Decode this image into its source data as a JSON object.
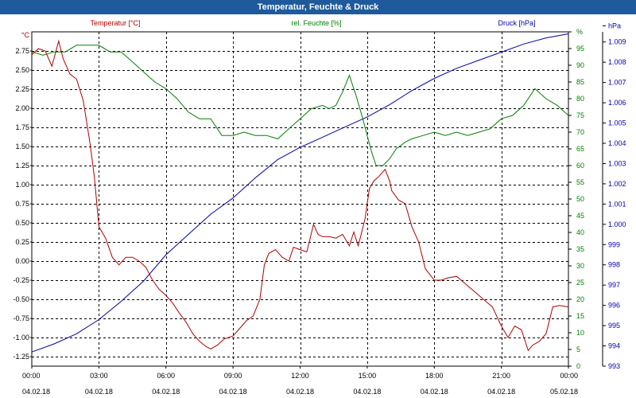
{
  "window": {
    "title": "Temperatur, Feuchte & Druck"
  },
  "chart_data": {
    "type": "line",
    "title": "Temperatur, Feuchte & Druck",
    "colors": {
      "temp": "#b00000",
      "hum": "#008000",
      "press": "#0000b0",
      "grid": "#000000"
    },
    "x_ticks": [
      {
        "time": "00:00",
        "date": "04.02.18",
        "h": 0
      },
      {
        "time": "03:00",
        "date": "04.02.18",
        "h": 3
      },
      {
        "time": "06:00",
        "date": "04.02.18",
        "h": 6
      },
      {
        "time": "09:00",
        "date": "04.02.18",
        "h": 9
      },
      {
        "time": "12:00",
        "date": "04.02.18",
        "h": 12
      },
      {
        "time": "15:00",
        "date": "04.02.18",
        "h": 15
      },
      {
        "time": "18:00",
        "date": "04.02.18",
        "h": 18
      },
      {
        "time": "21:00",
        "date": "04.02.18",
        "h": 21
      },
      {
        "time": "00:00",
        "date": "05.02.18",
        "h": 24
      }
    ],
    "xlim": [
      0,
      24
    ],
    "series": [
      {
        "name": "Temperatur [°C]",
        "key": "temp",
        "unit": "°C",
        "axis": "left",
        "ylim": [
          -1.375,
          3.0
        ],
        "ticks": [
          "2.75",
          "2.50",
          "2.25",
          "2.00",
          "1.75",
          "1.50",
          "1.25",
          "1.00",
          "0.75",
          "0.50",
          "0.25",
          "0.00",
          "-0.25",
          "-0.50",
          "-0.75",
          "-1.00",
          "-1.25"
        ],
        "tick_values": [
          2.75,
          2.5,
          2.25,
          2.0,
          1.75,
          1.5,
          1.25,
          1.0,
          0.75,
          0.5,
          0.25,
          0.0,
          -0.25,
          -0.5,
          -0.75,
          -1.0,
          -1.25
        ],
        "x": [
          0,
          0.3,
          0.6,
          0.9,
          1.2,
          1.4,
          1.7,
          2.0,
          2.3,
          2.6,
          2.8,
          3.0,
          3.3,
          3.6,
          3.9,
          4.2,
          4.5,
          4.8,
          5.1,
          5.4,
          5.7,
          6.0,
          6.3,
          6.6,
          6.9,
          7.2,
          7.5,
          7.8,
          8.0,
          8.3,
          8.6,
          9.0,
          9.3,
          9.6,
          9.9,
          10.2,
          10.4,
          10.6,
          10.9,
          11.2,
          11.5,
          11.7,
          12.0,
          12.3,
          12.6,
          12.8,
          13.0,
          13.3,
          13.6,
          13.9,
          14.2,
          14.4,
          14.6,
          14.9,
          15.1,
          15.3,
          15.5,
          15.8,
          16.0,
          16.1,
          16.4,
          16.7,
          17.0,
          17.3,
          17.6,
          18.0,
          18.3,
          18.6,
          19.0,
          19.4,
          19.8,
          20.2,
          20.6,
          21.0,
          21.3,
          21.6,
          21.9,
          22.2,
          22.4,
          22.7,
          23.0,
          23.3,
          23.6,
          24.0
        ],
        "values": [
          2.7,
          2.78,
          2.75,
          2.55,
          2.88,
          2.65,
          2.45,
          2.38,
          2.1,
          1.55,
          1.1,
          0.45,
          0.3,
          0.05,
          -0.05,
          0.05,
          0.05,
          0.0,
          -0.08,
          -0.25,
          -0.37,
          -0.45,
          -0.55,
          -0.68,
          -0.8,
          -0.95,
          -1.05,
          -1.12,
          -1.15,
          -1.1,
          -1.02,
          -0.98,
          -0.88,
          -0.78,
          -0.72,
          -0.5,
          -0.05,
          0.1,
          0.15,
          0.05,
          0.0,
          0.18,
          0.15,
          0.12,
          0.48,
          0.35,
          0.32,
          0.32,
          0.3,
          0.35,
          0.2,
          0.38,
          0.2,
          0.55,
          0.95,
          1.05,
          1.1,
          1.2,
          1.05,
          0.92,
          0.8,
          0.75,
          0.45,
          0.25,
          -0.1,
          -0.25,
          -0.25,
          -0.22,
          -0.2,
          -0.3,
          -0.4,
          -0.5,
          -0.6,
          -0.85,
          -1.0,
          -0.85,
          -0.9,
          -1.17,
          -1.1,
          -1.05,
          -0.95,
          -0.6,
          -0.58,
          -0.6
        ]
      },
      {
        "name": "rel. Feuchte [%]",
        "key": "hum",
        "unit": "%",
        "axis": "right-inner",
        "ylim": [
          0,
          100
        ],
        "ticks": [
          "0",
          "5",
          "10",
          "15",
          "20",
          "25",
          "30",
          "35",
          "40",
          "45",
          "50",
          "55",
          "60",
          "65",
          "70",
          "75",
          "80",
          "85",
          "90",
          "95",
          "%"
        ],
        "tick_values": [
          0,
          5,
          10,
          15,
          20,
          25,
          30,
          35,
          40,
          45,
          50,
          55,
          60,
          65,
          70,
          75,
          80,
          85,
          90,
          95,
          100
        ],
        "x": [
          0,
          0.5,
          1.0,
          1.5,
          2.0,
          2.5,
          3.0,
          3.5,
          4.0,
          4.5,
          5.0,
          5.5,
          6.0,
          6.5,
          7.0,
          7.5,
          8.0,
          8.5,
          9.0,
          9.5,
          10.0,
          10.5,
          11.0,
          11.5,
          12.0,
          12.5,
          13.0,
          13.3,
          13.6,
          13.9,
          14.2,
          14.5,
          14.8,
          15.0,
          15.2,
          15.4,
          15.7,
          16.0,
          16.3,
          16.7,
          17.0,
          17.5,
          18.0,
          18.5,
          19.0,
          19.5,
          20.0,
          20.5,
          21.0,
          21.5,
          22.0,
          22.5,
          23.0,
          23.5,
          24.0
        ],
        "values": [
          94,
          93,
          94,
          94,
          96,
          96,
          96,
          94,
          94,
          91,
          88,
          85,
          83,
          80,
          76,
          74,
          74,
          69,
          69,
          70,
          69,
          69,
          68,
          71,
          74,
          77,
          78,
          77,
          78,
          82,
          87,
          81,
          74,
          69,
          64,
          60,
          60,
          62,
          65,
          67,
          68,
          69,
          70,
          69,
          70,
          69,
          70,
          71,
          74,
          75,
          78,
          83,
          80,
          78,
          75
        ]
      },
      {
        "name": "Druck [hPa]",
        "key": "press",
        "unit": "hPa",
        "axis": "right-outer",
        "ylim": [
          993,
          1009.5
        ],
        "ticks": [
          "993",
          "994",
          "995",
          "996",
          "997",
          "998",
          "999",
          "1.000",
          "1.001",
          "1.002",
          "1.003",
          "1.004",
          "1.005",
          "1.006",
          "1.007",
          "1.008",
          "1.009",
          "hPa"
        ],
        "tick_values": [
          993,
          994,
          995,
          996,
          997,
          998,
          999,
          1000,
          1001,
          1002,
          1003,
          1004,
          1005,
          1006,
          1007,
          1008,
          1009,
          1009.8
        ],
        "x": [
          0,
          1,
          2,
          3,
          4,
          5,
          6,
          7,
          8,
          9,
          10,
          11,
          12,
          13,
          14,
          15,
          16,
          17,
          18,
          19,
          20,
          21,
          22,
          23,
          24
        ],
        "values": [
          993.7,
          994.1,
          994.6,
          995.3,
          996.2,
          997.2,
          998.5,
          999.5,
          1000.5,
          1001.3,
          1002.3,
          1003.2,
          1003.8,
          1004.3,
          1004.8,
          1005.3,
          1005.9,
          1006.6,
          1007.2,
          1007.7,
          1008.1,
          1008.5,
          1008.9,
          1009.2,
          1009.4
        ]
      }
    ],
    "grid": true,
    "left_unit_label": "°C"
  }
}
